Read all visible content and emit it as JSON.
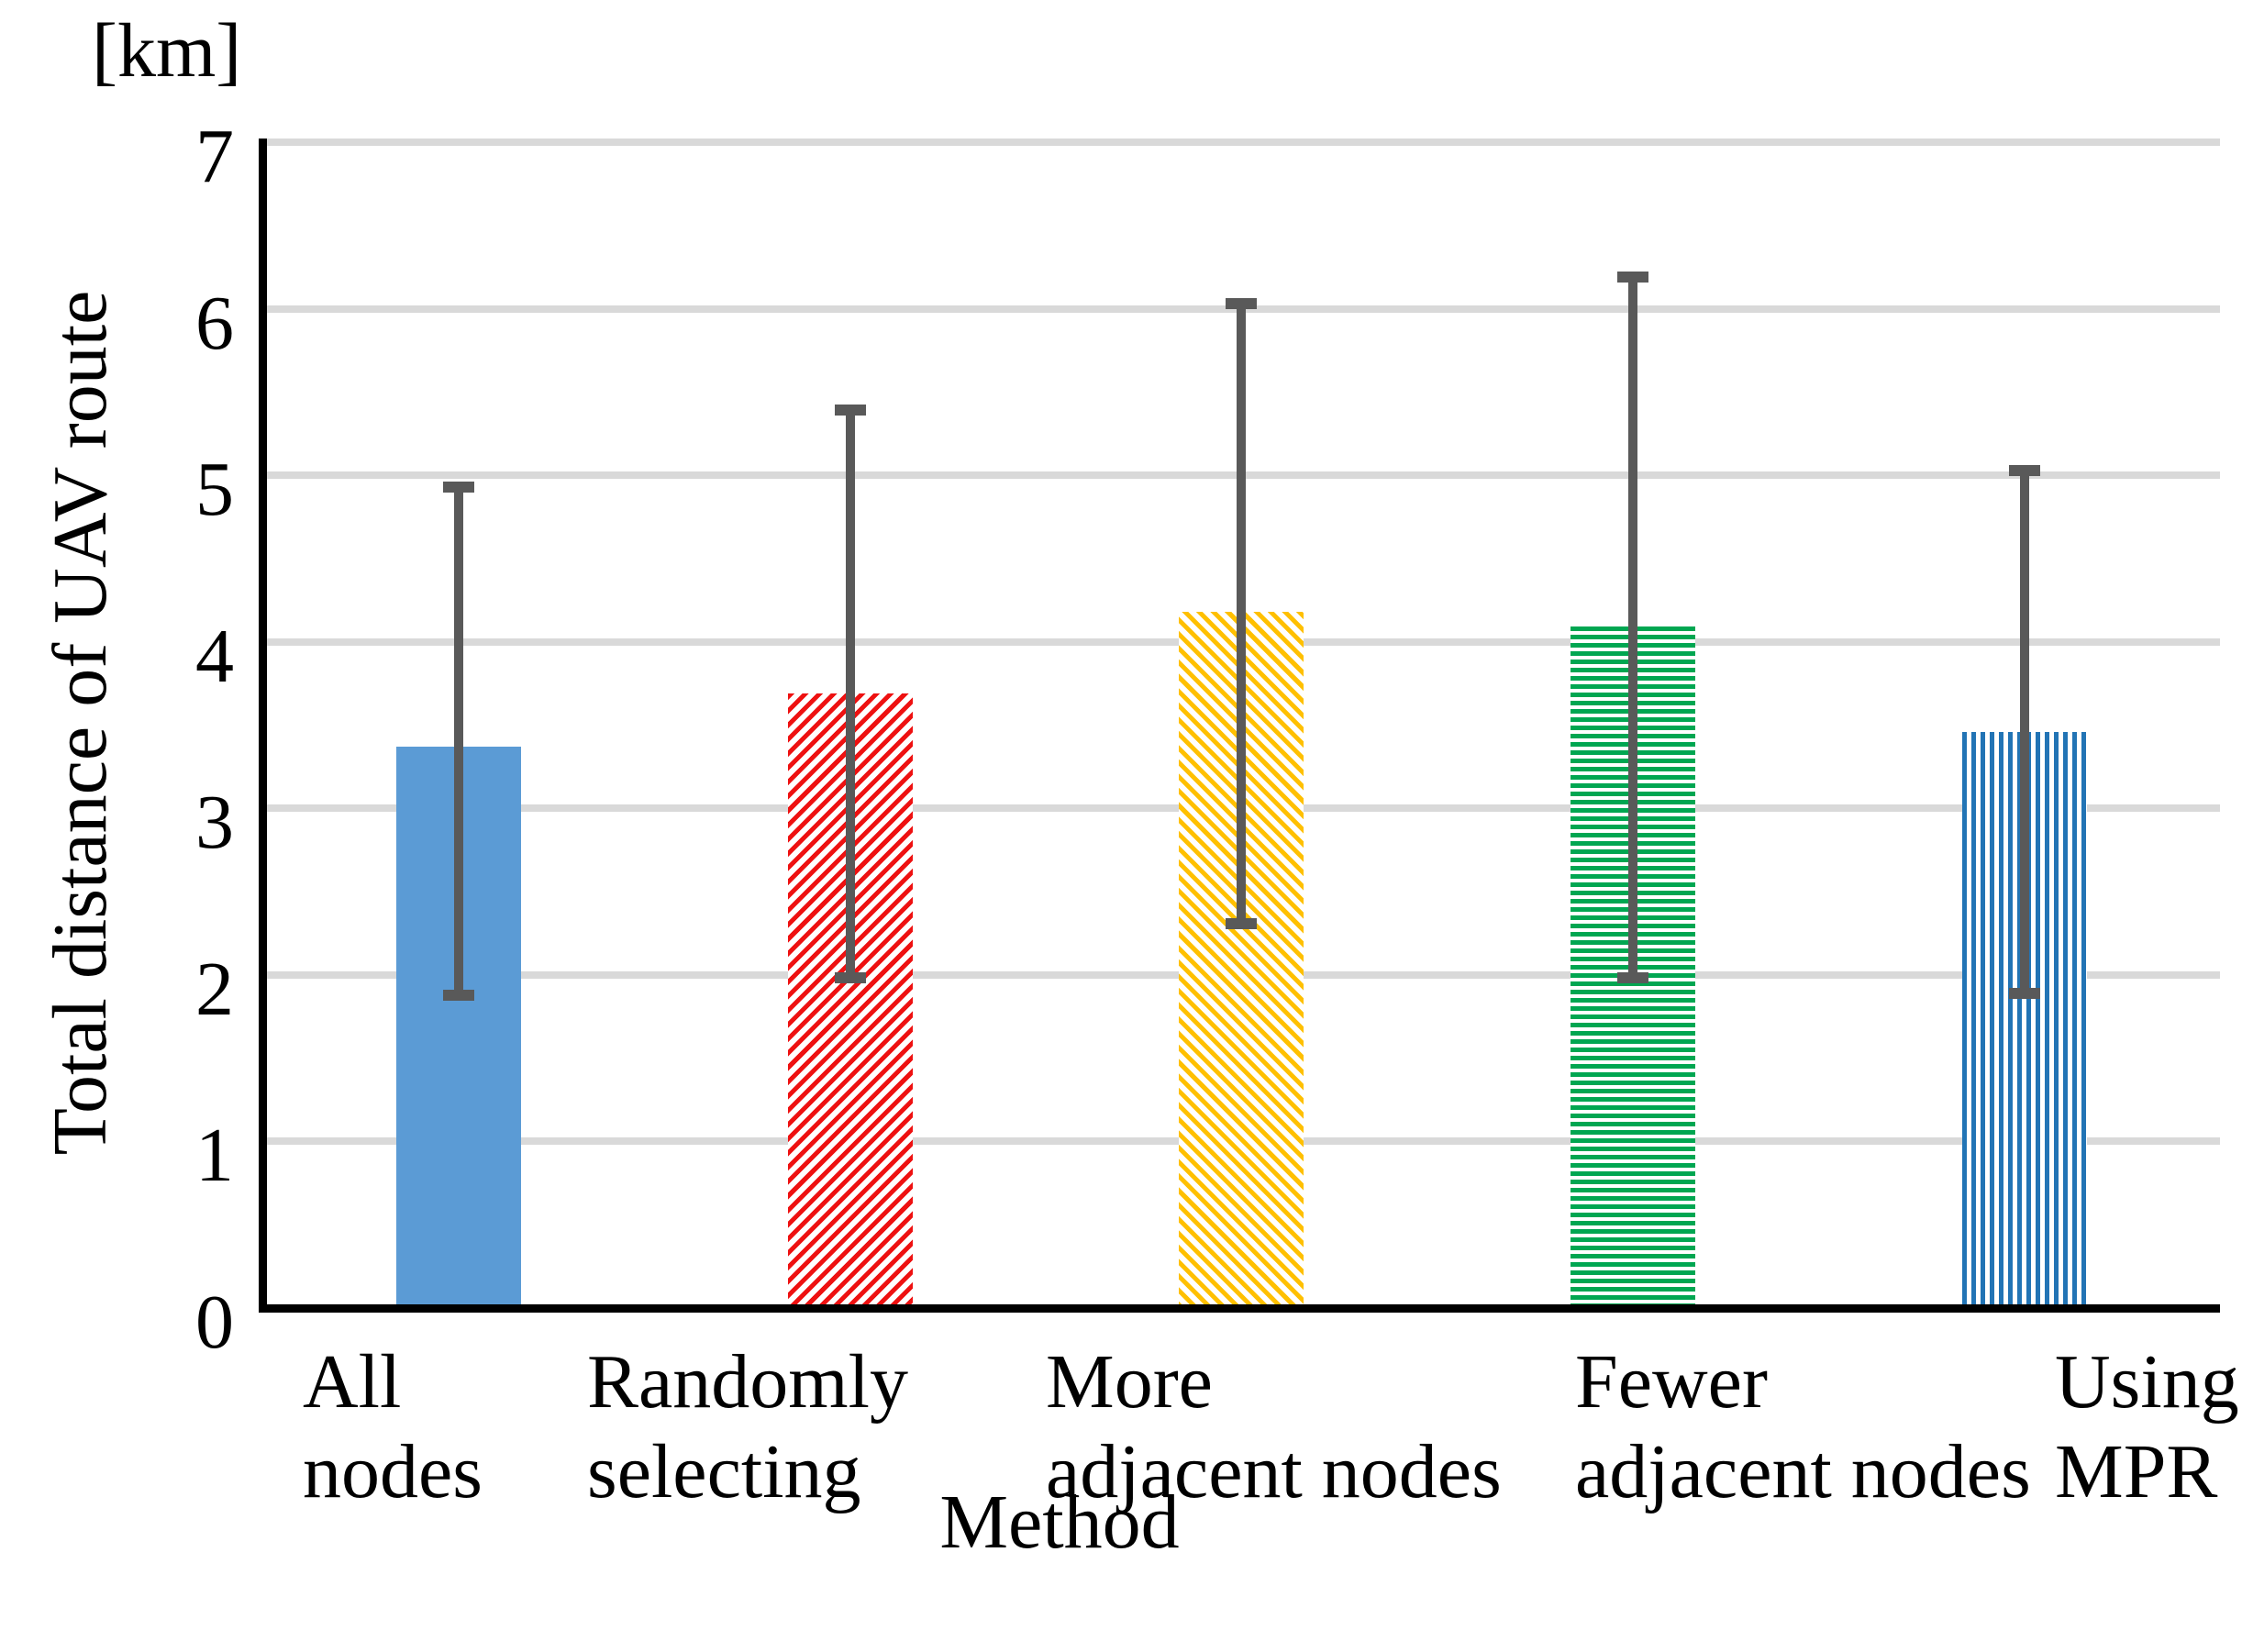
{
  "unit_label": "[km]",
  "chart_data": {
    "type": "bar",
    "title": "",
    "xlabel": "Method",
    "ylabel": "Total distance of UAV route",
    "unit": "[km]",
    "ylim": [
      0,
      7
    ],
    "yticks": [
      0,
      1,
      2,
      3,
      4,
      5,
      6,
      7
    ],
    "grid": "horizontal",
    "legend": "none",
    "categories": [
      "All nodes",
      "Randomly selecting",
      "More adjacent nodes",
      "Fewer adjacent nodes",
      "Using MPR"
    ],
    "category_label_lines": [
      [
        "All",
        "nodes"
      ],
      [
        "Randomly",
        "selecting"
      ],
      [
        "More",
        "adjacent nodes"
      ],
      [
        "Fewer",
        "adjacent nodes"
      ],
      [
        "Using",
        "MPR"
      ]
    ],
    "series": [
      {
        "name": "Total distance of UAV route [km]",
        "values": [
          3.37,
          3.69,
          4.18,
          4.09,
          3.46
        ],
        "error_top": [
          4.93,
          5.39,
          6.03,
          6.19,
          5.03
        ],
        "error_bottom": [
          1.88,
          1.98,
          2.31,
          1.98,
          1.89
        ]
      }
    ],
    "bar_styles": [
      {
        "pattern": "solid",
        "color": "#5B9BD5"
      },
      {
        "pattern": "diagonal-up",
        "color": "#EE1111"
      },
      {
        "pattern": "diagonal-down",
        "color": "#FFC000"
      },
      {
        "pattern": "horizontal-lines",
        "color": "#00A651"
      },
      {
        "pattern": "vertical-lines",
        "color": "#2274B5"
      }
    ],
    "colors": {
      "error_bar": "#595959",
      "gridline": "#D9D9D9",
      "axis": "#000000",
      "text": "#000000",
      "background": "#FFFFFF"
    }
  }
}
